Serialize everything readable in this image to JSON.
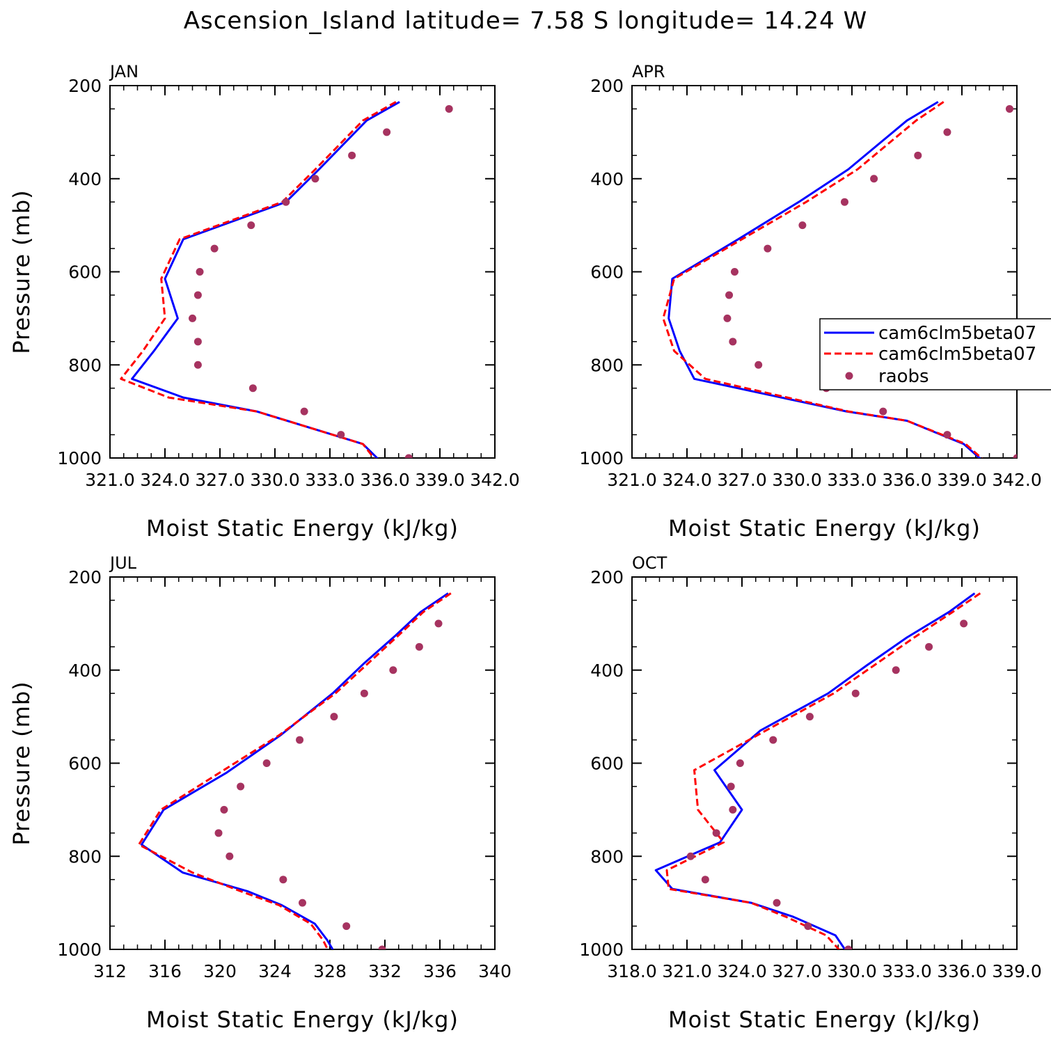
{
  "figure": {
    "title": "Ascension_Island  latitude= 7.58 S longitude= 14.24 W"
  },
  "legend": {
    "entries": [
      "cam6clm5beta07",
      "cam6clm5beta07",
      "raobs"
    ]
  },
  "colors": {
    "model_a": "#0000ff",
    "model_b": "#ff0000",
    "raobs": "#a63360"
  },
  "chart_data": [
    {
      "type": "line",
      "panel_label": "JAN",
      "xlabel": "Moist Static Energy (kJ/kg)",
      "ylabel": "Pressure (mb)",
      "xlim": [
        321.0,
        342.0
      ],
      "ylim": [
        1000,
        200
      ],
      "x_ticks": [
        321.0,
        324.0,
        327.0,
        330.0,
        333.0,
        336.0,
        339.0,
        342.0
      ],
      "x_tick_labels": [
        "321.0",
        "324.0",
        "327.0",
        "330.0",
        "333.0",
        "336.0",
        "339.0",
        "342.0"
      ],
      "y_ticks": [
        200,
        400,
        600,
        800,
        1000
      ],
      "y_tick_labels": [
        "200",
        "400",
        "600",
        "800",
        "1000"
      ],
      "show_legend": false,
      "series": [
        {
          "name": "cam6clm5beta07",
          "style": "solid",
          "pressure": [
            235,
            275,
            380,
            450,
            530,
            615,
            700,
            770,
            830,
            870,
            900,
            970,
            1005
          ],
          "values": [
            336.8,
            335.0,
            332.4,
            330.6,
            325.0,
            324.0,
            324.7,
            323.4,
            322.2,
            325.0,
            329.0,
            334.8,
            335.7
          ]
        },
        {
          "name": "cam6clm5beta07",
          "style": "dashed",
          "pressure": [
            235,
            275,
            380,
            450,
            530,
            615,
            700,
            770,
            830,
            870,
            900,
            970,
            1005
          ],
          "values": [
            336.6,
            334.8,
            332.2,
            330.4,
            324.8,
            323.8,
            324.0,
            322.8,
            321.6,
            324.2,
            329.0,
            334.8,
            335.5
          ]
        },
        {
          "name": "raobs",
          "style": "markers",
          "pressure": [
            250,
            300,
            350,
            400,
            450,
            500,
            550,
            600,
            650,
            700,
            750,
            800,
            850,
            900,
            950,
            1000
          ],
          "values": [
            339.5,
            336.1,
            334.2,
            332.2,
            330.6,
            328.7,
            326.7,
            325.9,
            325.8,
            325.5,
            325.8,
            325.8,
            328.8,
            331.6,
            333.6,
            337.3
          ]
        }
      ]
    },
    {
      "type": "line",
      "panel_label": "APR",
      "xlabel": "Moist Static Energy (kJ/kg)",
      "ylabel": "",
      "xlim": [
        321.0,
        342.0
      ],
      "ylim": [
        1000,
        200
      ],
      "x_ticks": [
        321.0,
        324.0,
        327.0,
        330.0,
        333.0,
        336.0,
        339.0,
        342.0
      ],
      "x_tick_labels": [
        "321.0",
        "324.0",
        "327.0",
        "330.0",
        "333.0",
        "336.0",
        "339.0",
        "342.0"
      ],
      "y_ticks": [
        200,
        400,
        600,
        800,
        1000
      ],
      "y_tick_labels": [
        "200",
        "400",
        "600",
        "800",
        "1000"
      ],
      "show_legend": true,
      "series": [
        {
          "name": "cam6clm5beta07",
          "style": "solid",
          "pressure": [
            235,
            275,
            380,
            450,
            530,
            615,
            700,
            770,
            830,
            900,
            920,
            970,
            1005
          ],
          "values": [
            337.7,
            336.0,
            332.8,
            330.1,
            326.8,
            323.2,
            323.0,
            323.6,
            324.4,
            332.7,
            336.0,
            339.1,
            340.1
          ]
        },
        {
          "name": "cam6clm5beta07",
          "style": "dashed",
          "pressure": [
            235,
            275,
            380,
            450,
            530,
            615,
            700,
            770,
            830,
            900,
            920,
            970,
            1005
          ],
          "values": [
            338.0,
            336.5,
            333.3,
            330.5,
            327.0,
            323.3,
            322.7,
            323.3,
            325.0,
            332.8,
            336.0,
            339.2,
            340.2
          ]
        },
        {
          "name": "raobs",
          "style": "markers",
          "pressure": [
            250,
            300,
            350,
            400,
            450,
            500,
            550,
            600,
            650,
            700,
            750,
            800,
            850,
            900,
            950,
            1000
          ],
          "values": [
            341.6,
            338.2,
            336.6,
            334.2,
            332.6,
            330.3,
            328.4,
            326.6,
            326.3,
            326.2,
            326.5,
            327.9,
            331.6,
            334.7,
            338.2,
            342.0
          ]
        }
      ]
    },
    {
      "type": "line",
      "panel_label": "JUL",
      "xlabel": "Moist Static Energy (kJ/kg)",
      "ylabel": "Pressure (mb)",
      "xlim": [
        312,
        340
      ],
      "ylim": [
        1000,
        200
      ],
      "x_ticks": [
        312,
        316,
        320,
        324,
        328,
        332,
        336,
        340
      ],
      "x_tick_labels": [
        "312",
        "316",
        "320",
        "324",
        "328",
        "332",
        "336",
        "340"
      ],
      "y_ticks": [
        200,
        400,
        600,
        800,
        1000
      ],
      "y_tick_labels": [
        "200",
        "400",
        "600",
        "800",
        "1000"
      ],
      "show_legend": false,
      "series": [
        {
          "name": "cam6clm5beta07",
          "style": "solid",
          "pressure": [
            235,
            275,
            325,
            385,
            450,
            540,
            620,
            700,
            775,
            835,
            875,
            905,
            945,
            980,
            1010
          ],
          "values": [
            336.6,
            334.6,
            332.8,
            330.5,
            328.2,
            324.4,
            320.5,
            315.9,
            314.3,
            317.3,
            322.0,
            324.5,
            326.9,
            327.8,
            328.4
          ]
        },
        {
          "name": "cam6clm5beta07",
          "style": "dashed",
          "pressure": [
            235,
            275,
            325,
            385,
            450,
            540,
            620,
            700,
            775,
            835,
            875,
            905,
            945,
            980,
            1010
          ],
          "values": [
            336.8,
            334.8,
            333.0,
            330.8,
            328.4,
            324.3,
            320.0,
            315.7,
            314.1,
            318.0,
            321.5,
            324.3,
            326.6,
            327.5,
            328.0
          ]
        },
        {
          "name": "raobs",
          "style": "markers",
          "pressure": [
            300,
            350,
            400,
            450,
            500,
            550,
            600,
            650,
            700,
            750,
            800,
            850,
            900,
            950,
            1000
          ],
          "values": [
            335.9,
            334.5,
            332.6,
            330.5,
            328.3,
            325.8,
            323.4,
            321.5,
            320.3,
            319.9,
            320.7,
            324.6,
            326.0,
            329.2,
            331.8
          ]
        }
      ]
    },
    {
      "type": "line",
      "panel_label": "OCT",
      "xlabel": "Moist Static Energy (kJ/kg)",
      "ylabel": "",
      "xlim": [
        318.0,
        339.0
      ],
      "ylim": [
        1000,
        200
      ],
      "x_ticks": [
        318.0,
        321.0,
        324.0,
        327.0,
        330.0,
        333.0,
        336.0,
        339.0
      ],
      "x_tick_labels": [
        "318.0",
        "321.0",
        "324.0",
        "327.0",
        "330.0",
        "333.0",
        "336.0",
        "339.0"
      ],
      "y_ticks": [
        200,
        400,
        600,
        800,
        1000
      ],
      "y_tick_labels": [
        "200",
        "400",
        "600",
        "800",
        "1000"
      ],
      "show_legend": false,
      "series": [
        {
          "name": "cam6clm5beta07",
          "style": "solid",
          "pressure": [
            235,
            275,
            330,
            390,
            450,
            530,
            615,
            700,
            770,
            830,
            870,
            900,
            930,
            970,
            1005
          ],
          "values": [
            336.7,
            335.3,
            333.0,
            330.8,
            328.7,
            325.0,
            322.5,
            324.0,
            322.8,
            319.3,
            320.2,
            324.5,
            326.8,
            329.1,
            329.7
          ]
        },
        {
          "name": "cam6clm5beta07",
          "style": "dashed",
          "pressure": [
            235,
            275,
            330,
            390,
            450,
            530,
            615,
            700,
            770,
            830,
            870,
            900,
            930,
            970,
            1005
          ],
          "values": [
            337.0,
            335.5,
            333.4,
            331.2,
            329.0,
            325.3,
            321.4,
            321.6,
            323.0,
            319.9,
            320.0,
            324.5,
            326.4,
            328.6,
            329.4
          ]
        },
        {
          "name": "raobs",
          "style": "markers",
          "pressure": [
            300,
            350,
            400,
            450,
            500,
            550,
            600,
            650,
            700,
            750,
            800,
            850,
            900,
            950,
            1000
          ],
          "values": [
            336.1,
            334.2,
            332.4,
            330.2,
            327.7,
            325.7,
            323.9,
            323.4,
            323.5,
            322.6,
            321.2,
            322.0,
            325.9,
            327.6,
            329.8
          ]
        }
      ]
    }
  ]
}
